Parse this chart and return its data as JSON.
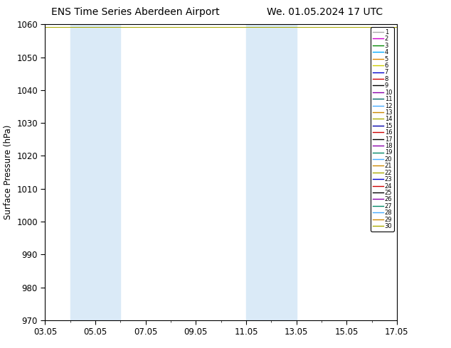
{
  "title_left": "ENS Time Series Aberdeen Airport",
  "title_right": "We. 01.05.2024 17 UTC",
  "ylabel": "Surface Pressure (hPa)",
  "ylim": [
    970,
    1060
  ],
  "yticks": [
    970,
    980,
    990,
    1000,
    1010,
    1020,
    1030,
    1040,
    1050,
    1060
  ],
  "xtick_labels": [
    "03.05",
    "05.05",
    "07.05",
    "09.05",
    "11.05",
    "13.05",
    "15.05",
    "17.05"
  ],
  "xtick_positions": [
    0,
    2,
    4,
    6,
    8,
    10,
    12,
    14
  ],
  "xlim": [
    0,
    14
  ],
  "shaded_bands": [
    {
      "start": 1.0,
      "end": 3.0
    },
    {
      "start": 8.0,
      "end": 10.0
    }
  ],
  "shade_color": "#daeaf7",
  "n_members": 30,
  "member_colors": [
    "#aaaaaa",
    "#cc00cc",
    "#008800",
    "#00aaff",
    "#dd8800",
    "#cccc00",
    "#0000cc",
    "#cc0000",
    "#000000",
    "#8800aa",
    "#006666",
    "#44aaff",
    "#cc8800",
    "#aaaa00",
    "#0000aa",
    "#cc0000",
    "#000000",
    "#8800aa",
    "#008866",
    "#44aaff",
    "#cc8800",
    "#aaaa00",
    "#0000cc",
    "#cc0000",
    "#000000",
    "#8800aa",
    "#008866",
    "#44aaff",
    "#cc8800",
    "#aaaa00"
  ],
  "member_value": 1059.2,
  "bg_color": "#ffffff",
  "title_fontsize": 10,
  "axis_fontsize": 8.5,
  "legend_fontsize": 6.0,
  "figsize": [
    6.34,
    4.9
  ],
  "dpi": 100
}
